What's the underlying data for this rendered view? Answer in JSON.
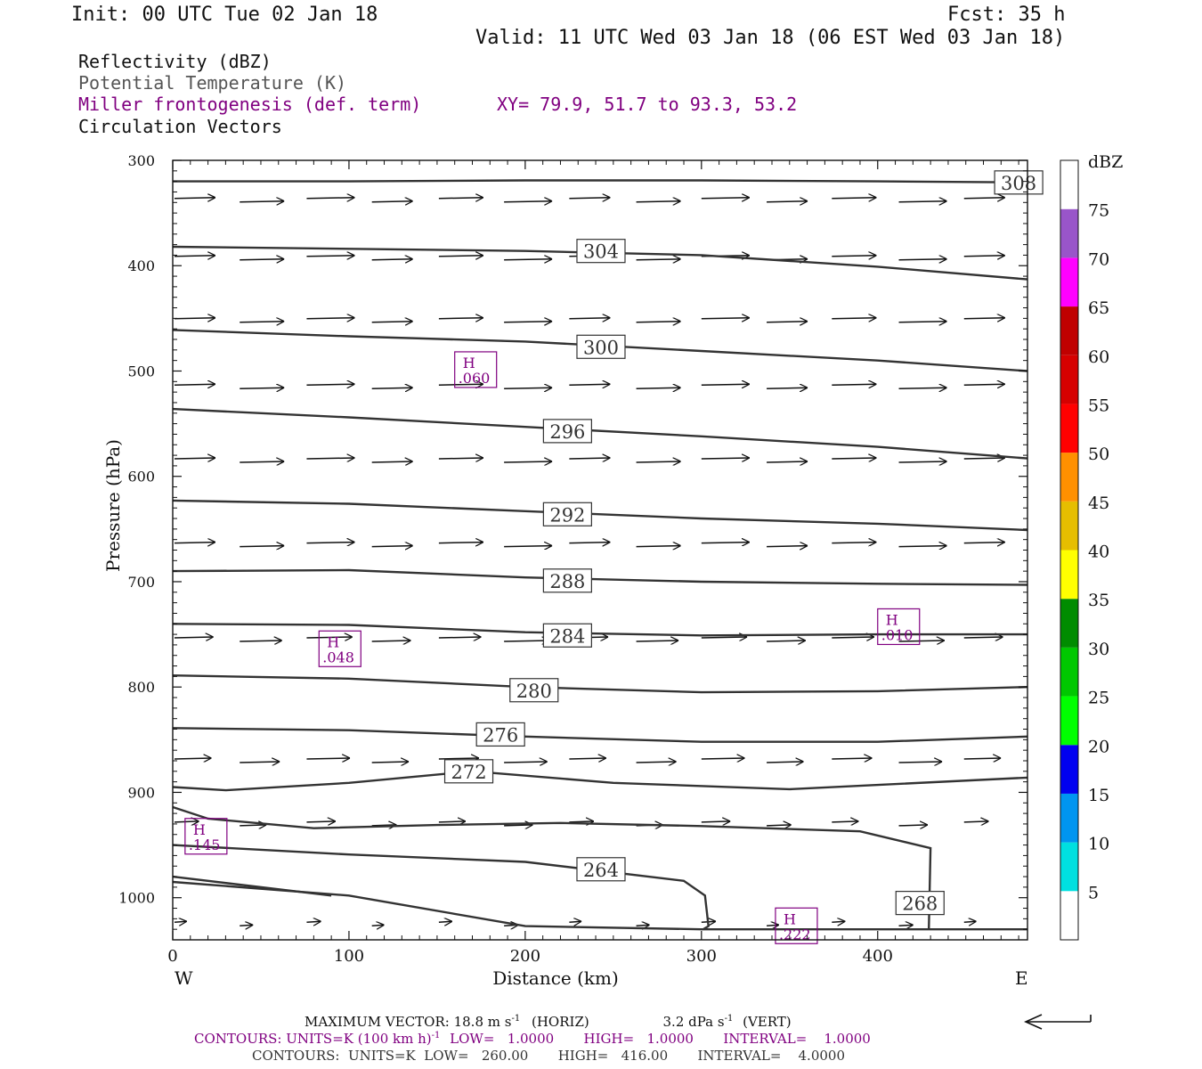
{
  "header": {
    "init": "Init: 00 UTC Tue 02 Jan 18",
    "fcst": "Fcst:   35 h",
    "valid": "Valid: 11 UTC Wed 03 Jan 18 (06 EST Wed 03 Jan 18)"
  },
  "products": {
    "reflectivity": "Reflectivity (dBZ)",
    "theta": "Potential Temperature (K)",
    "miller": "Miller frontogenesis (def. term)",
    "xy": "XY=  79.9, 51.7 to  93.3, 53.2",
    "circulation": "Circulation Vectors"
  },
  "colors": {
    "purple": "#800080",
    "gray": "#555555",
    "contour": "#333333"
  },
  "chart_data": {
    "type": "line",
    "xlabel": "Distance (km)",
    "ylabel": "Pressure (hPa)",
    "xlim": [
      0,
      485
    ],
    "ylim": [
      300,
      1040
    ],
    "x_ticks": [
      0,
      100,
      200,
      300,
      400
    ],
    "x_tick_labels": [
      "0",
      "100",
      "200",
      "300",
      "400"
    ],
    "y_ticks": [
      300,
      400,
      500,
      600,
      700,
      800,
      900,
      1000
    ],
    "y_tick_labels": [
      "300",
      "400",
      "500",
      "600",
      "700",
      "800",
      "900",
      "1000"
    ],
    "west_label": "W",
    "east_label": "E",
    "theta_contours": [
      {
        "label": "308",
        "label_at": [
          480,
          321
        ],
        "points": [
          [
            0,
            320
          ],
          [
            100,
            320
          ],
          [
            200,
            319
          ],
          [
            300,
            319
          ],
          [
            400,
            320
          ],
          [
            485,
            321
          ]
        ]
      },
      {
        "label": "304",
        "label_at": [
          243,
          386
        ],
        "points": [
          [
            0,
            382
          ],
          [
            100,
            384
          ],
          [
            200,
            386
          ],
          [
            300,
            390
          ],
          [
            400,
            401
          ],
          [
            485,
            413
          ]
        ]
      },
      {
        "label": "300",
        "label_at": [
          243,
          477
        ],
        "points": [
          [
            0,
            461
          ],
          [
            100,
            467
          ],
          [
            200,
            472
          ],
          [
            300,
            481
          ],
          [
            400,
            490
          ],
          [
            485,
            500
          ]
        ]
      },
      {
        "label": "296",
        "label_at": [
          224,
          557
        ],
        "points": [
          [
            0,
            536
          ],
          [
            100,
            544
          ],
          [
            200,
            553
          ],
          [
            300,
            562
          ],
          [
            400,
            572
          ],
          [
            485,
            583
          ]
        ]
      },
      {
        "label": "292",
        "label_at": [
          224,
          636
        ],
        "points": [
          [
            0,
            623
          ],
          [
            100,
            626
          ],
          [
            200,
            633
          ],
          [
            300,
            640
          ],
          [
            400,
            645
          ],
          [
            485,
            651
          ]
        ]
      },
      {
        "label": "288",
        "label_at": [
          224,
          699
        ],
        "points": [
          [
            0,
            690
          ],
          [
            100,
            689
          ],
          [
            200,
            696
          ],
          [
            300,
            700
          ],
          [
            400,
            702
          ],
          [
            485,
            703
          ]
        ]
      },
      {
        "label": "284",
        "label_at": [
          224,
          751
        ],
        "points": [
          [
            0,
            740
          ],
          [
            100,
            741
          ],
          [
            200,
            748
          ],
          [
            300,
            751
          ],
          [
            400,
            750
          ],
          [
            485,
            750
          ]
        ]
      },
      {
        "label": "280",
        "label_at": [
          205,
          803
        ],
        "points": [
          [
            0,
            789
          ],
          [
            100,
            792
          ],
          [
            200,
            800
          ],
          [
            300,
            805
          ],
          [
            400,
            804
          ],
          [
            485,
            800
          ]
        ]
      },
      {
        "label": "276",
        "label_at": [
          186,
          845
        ],
        "points": [
          [
            0,
            839
          ],
          [
            100,
            841
          ],
          [
            200,
            847
          ],
          [
            300,
            852
          ],
          [
            400,
            852
          ],
          [
            485,
            847
          ]
        ]
      },
      {
        "label": "272",
        "label_at": [
          168,
          880
        ],
        "points": [
          [
            0,
            895
          ],
          [
            30,
            898
          ],
          [
            100,
            891
          ],
          [
            170,
            880
          ],
          [
            250,
            891
          ],
          [
            350,
            897
          ],
          [
            485,
            886
          ]
        ]
      },
      {
        "label": "",
        "label_at": null,
        "points": [
          [
            0,
            914
          ],
          [
            20,
            925
          ],
          [
            80,
            934
          ],
          [
            150,
            931
          ],
          [
            220,
            929
          ],
          [
            300,
            932
          ],
          [
            390,
            937
          ],
          [
            430,
            953
          ],
          [
            429,
            1030
          ]
        ]
      },
      {
        "label": "264",
        "label_at": [
          243,
          973
        ],
        "points": [
          [
            0,
            950
          ],
          [
            100,
            959
          ],
          [
            200,
            966
          ],
          [
            290,
            984
          ],
          [
            302,
            998
          ],
          [
            304,
            1027
          ],
          [
            301,
            1030
          ]
        ]
      },
      {
        "label": "268",
        "label_at": [
          424,
          1005
        ],
        "points": [
          [
            0,
            985
          ],
          [
            100,
            998
          ],
          [
            200,
            1027
          ],
          [
            300,
            1030
          ],
          [
            400,
            1030
          ],
          [
            485,
            1030
          ]
        ]
      },
      {
        "label": "",
        "label_at": null,
        "points": [
          [
            0,
            980
          ],
          [
            90,
            998
          ]
        ]
      }
    ],
    "frontogenesis_maxima": [
      {
        "symbol": "H",
        "value": ".060",
        "x": 160,
        "y": 497
      },
      {
        "symbol": "H",
        "value": ".048",
        "x": 83,
        "y": 762
      },
      {
        "symbol": "H",
        "value": ".010",
        "x": 400,
        "y": 741
      },
      {
        "symbol": "H",
        "value": ".145",
        "x": 7,
        "y": 940
      },
      {
        "symbol": "H",
        "value": ".222",
        "x": 342,
        "y": 1025
      }
    ],
    "vector_rows": [
      {
        "p": 337,
        "speed": 1.0
      },
      {
        "p": 392,
        "speed": 1.0
      },
      {
        "p": 452,
        "speed": 1.0
      },
      {
        "p": 515,
        "speed": 1.0
      },
      {
        "p": 585,
        "speed": 1.0
      },
      {
        "p": 665,
        "speed": 1.0
      },
      {
        "p": 755,
        "speed": 0.95
      },
      {
        "p": 870,
        "speed": 0.9
      },
      {
        "p": 930,
        "speed": 0.6
      },
      {
        "p": 1025,
        "speed": 0.3
      }
    ],
    "colorbar": {
      "unit": "dBZ",
      "levels": [
        "5",
        "10",
        "15",
        "20",
        "25",
        "30",
        "35",
        "40",
        "45",
        "50",
        "55",
        "60",
        "65",
        "70",
        "75"
      ],
      "colors": [
        "#ffffff",
        "#00e0e0",
        "#0095f0",
        "#0000f0",
        "#00ff00",
        "#00c800",
        "#008c00",
        "#ffff00",
        "#e6be00",
        "#ff9000",
        "#ff0000",
        "#d60000",
        "#c00000",
        "#ff00ff",
        "#9955c9",
        "#ffffff"
      ]
    }
  },
  "footer": {
    "max_vector": "MAXIMUM VECTOR:  18.8 m s",
    "horiz": "(HORIZ)",
    "vert_val": "3.2 dPa s",
    "vert": "(VERT)",
    "sup_neg1": "-1",
    "contours1": "CONTOURS:  UNITS=K (100 km h)",
    "contours1_rest": "LOW=   1.0000       HIGH=   1.0000       INTERVAL=    1.0000",
    "contours2": "CONTOURS:  UNITS=K  LOW=   260.00       HIGH=   416.00       INTERVAL=    4.0000"
  }
}
